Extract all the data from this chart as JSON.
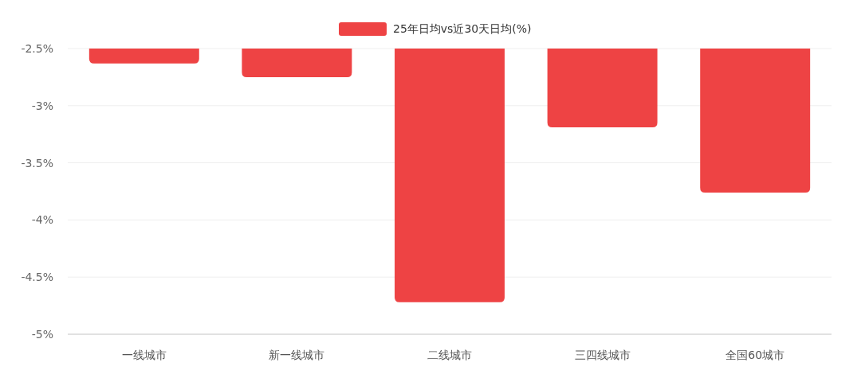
{
  "chart_data": {
    "type": "bar",
    "categories": [
      "一线城市",
      "新一线城市",
      "二线城市",
      "三四线城市",
      "全国60城市"
    ],
    "series": [
      {
        "name": "25年日均vs近30天日均(%)",
        "color": "#ee4344",
        "values": [
          -2.63,
          -2.75,
          -4.72,
          -3.19,
          -3.76
        ]
      }
    ],
    "ylim": [
      -5,
      -2.5
    ],
    "yticks": [
      {
        "value": -5,
        "label": "-5%"
      },
      {
        "value": -4.5,
        "label": "-4.5%"
      },
      {
        "value": -4,
        "label": "-4%"
      },
      {
        "value": -3.5,
        "label": "-3.5%"
      },
      {
        "value": -3,
        "label": "-3%"
      },
      {
        "value": -2.5,
        "label": "-2.5%"
      }
    ],
    "grid": "y",
    "legend": "top"
  }
}
